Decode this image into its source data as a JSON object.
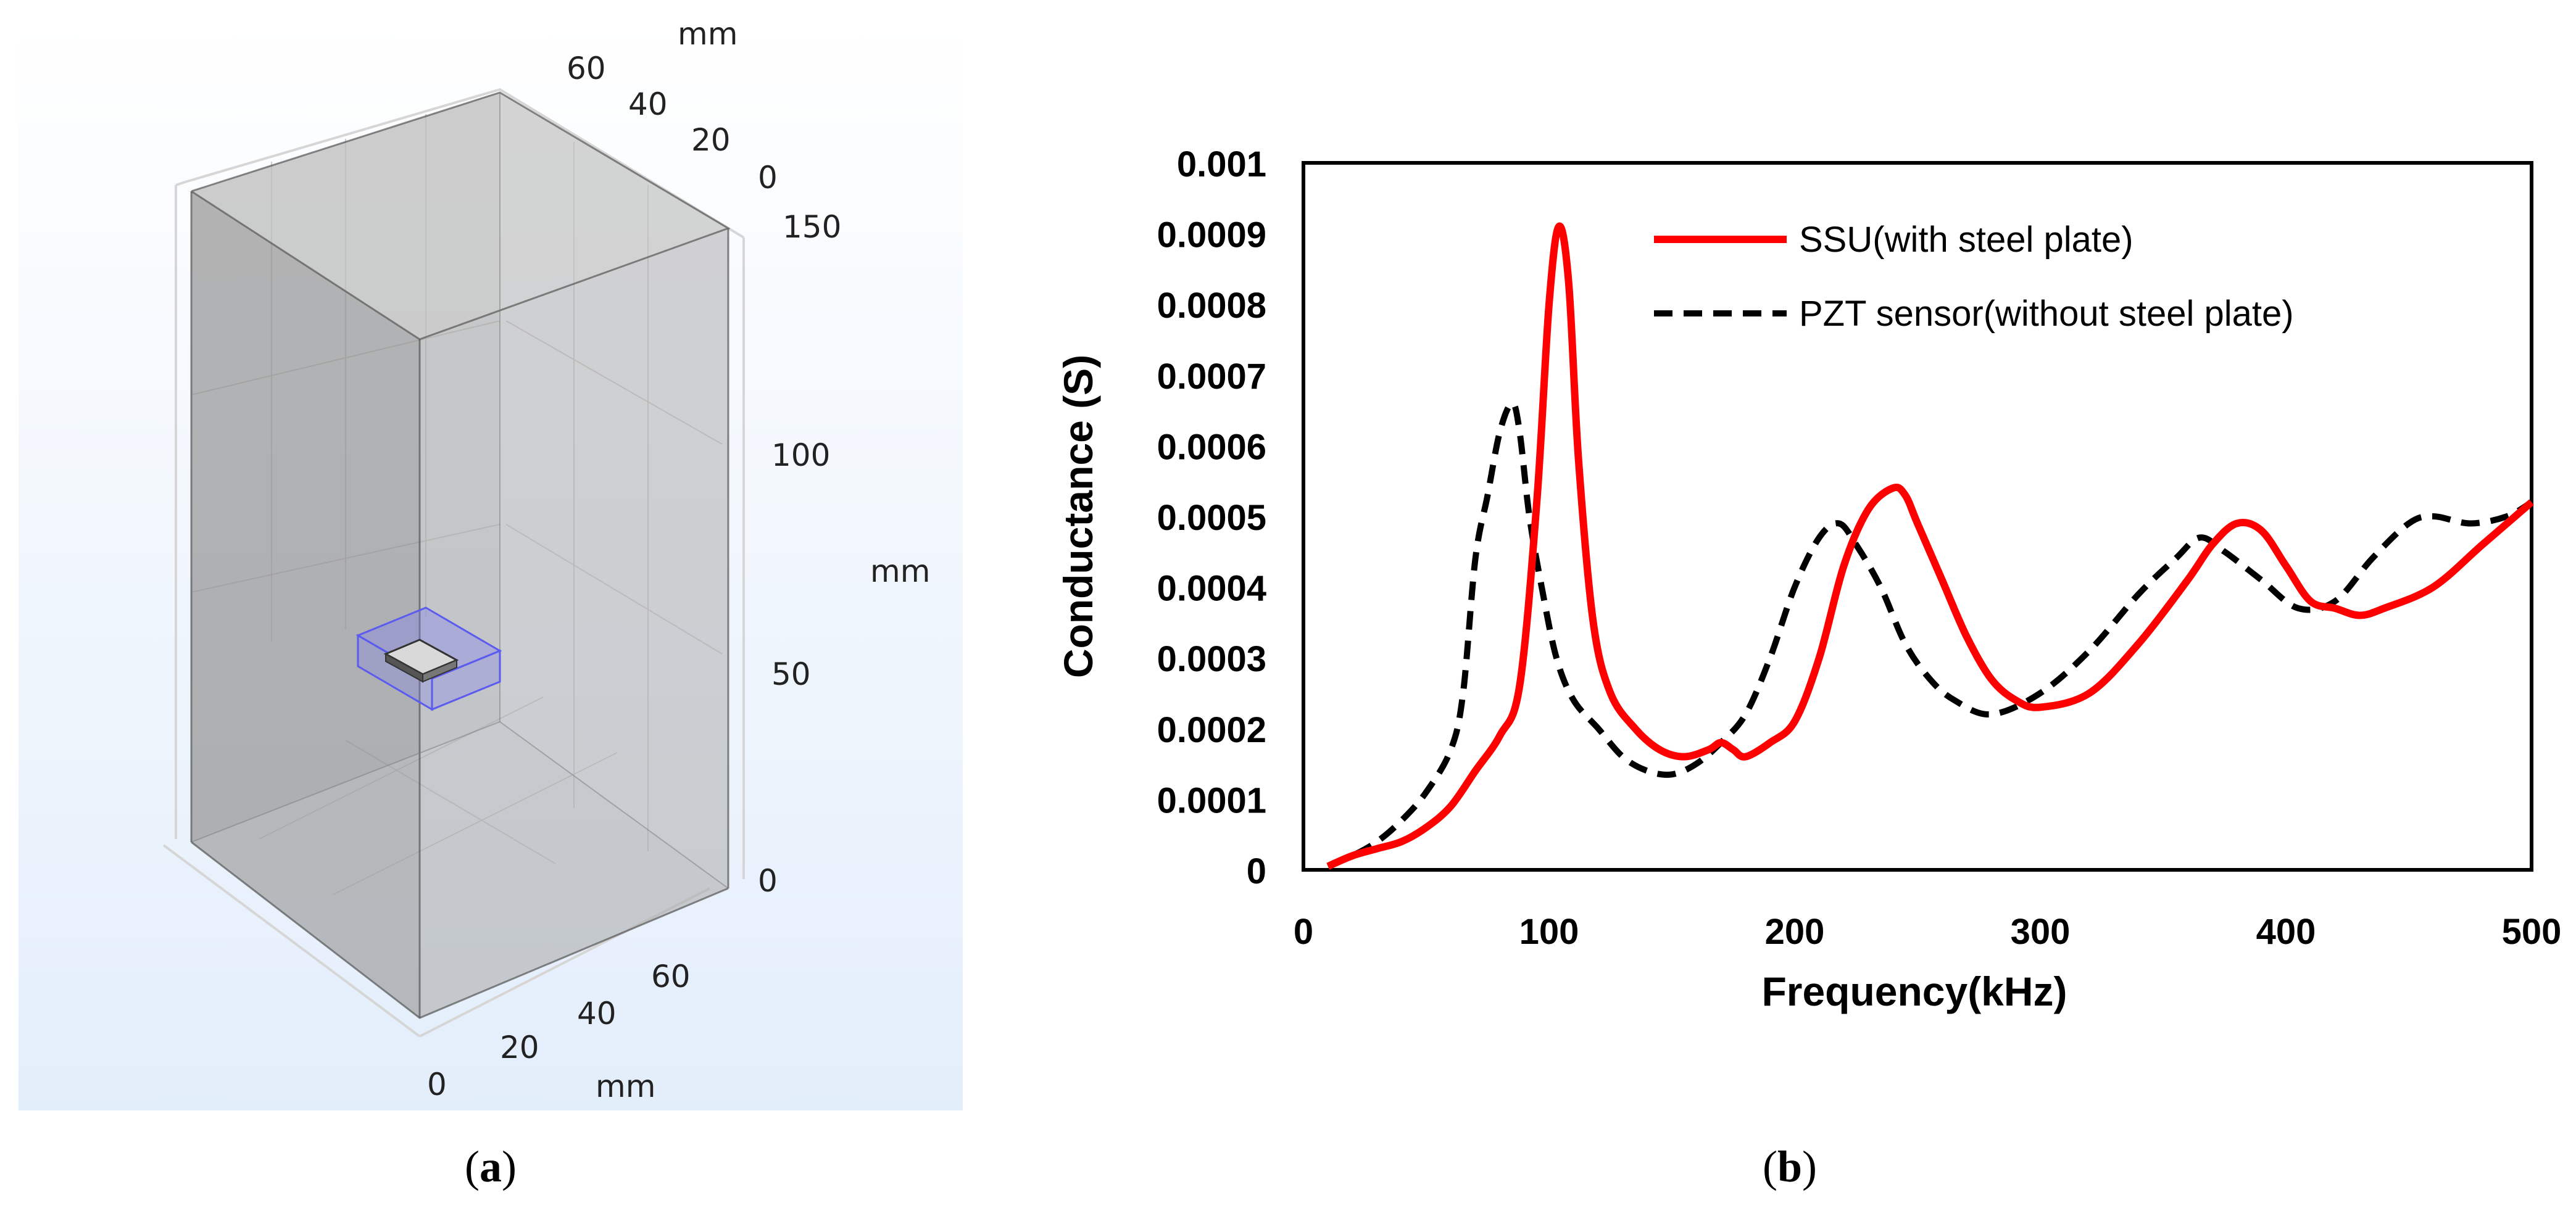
{
  "panel_a": {
    "caption_open": "(",
    "caption_letter": "a",
    "caption_close": ")",
    "unit_label": "mm",
    "top_axis_ticks": [
      "60",
      "40",
      "20",
      "0"
    ],
    "vertical_axis_ticks": [
      "150",
      "100",
      "50",
      "0"
    ],
    "bottom_axis_ticks": [
      "0",
      "20",
      "40",
      "60"
    ],
    "colors": {
      "background_top": "#ffffff",
      "background_bottom": "#e3eefb",
      "box_fill": "#bdbdbd",
      "sensor_outline": "#5b5bef"
    }
  },
  "panel_b": {
    "caption_open": "(",
    "caption_letter": "b",
    "caption_close": ")"
  },
  "chart_data": {
    "type": "line",
    "xlabel": "Frequency(kHz)",
    "ylabel": "Conductance (S)",
    "xlim": [
      0,
      500
    ],
    "ylim": [
      0,
      0.001
    ],
    "x_ticks": [
      "0",
      "100",
      "200",
      "300",
      "400",
      "500"
    ],
    "y_ticks": [
      "0",
      "0.0001",
      "0.0002",
      "0.0003",
      "0.0004",
      "0.0005",
      "0.0006",
      "0.0007",
      "0.0008",
      "0.0009",
      "0.001"
    ],
    "grid": false,
    "legend_position": "top-right",
    "series": [
      {
        "name": "SSU(with steel plate)",
        "color": "#ff0000",
        "style": "solid",
        "x": [
          10,
          20,
          30,
          40,
          50,
          60,
          70,
          80,
          88,
          95,
          100,
          104,
          108,
          112,
          118,
          125,
          135,
          145,
          155,
          165,
          170,
          175,
          180,
          190,
          200,
          210,
          220,
          230,
          240,
          245,
          250,
          260,
          270,
          280,
          290,
          300,
          320,
          340,
          360,
          370,
          380,
          390,
          400,
          410,
          420,
          430,
          440,
          460,
          480,
          500
        ],
        "y": [
          5e-06,
          2e-05,
          3e-05,
          4e-05,
          6e-05,
          9e-05,
          0.00014,
          0.00019,
          0.00026,
          0.00052,
          0.0008,
          0.00091,
          0.00083,
          0.00058,
          0.00035,
          0.00025,
          0.0002,
          0.00017,
          0.00016,
          0.00017,
          0.00018,
          0.00017,
          0.00016,
          0.00018,
          0.00021,
          0.0003,
          0.00043,
          0.00051,
          0.00054,
          0.00053,
          0.00049,
          0.00041,
          0.00033,
          0.00027,
          0.00024,
          0.00023,
          0.00025,
          0.00032,
          0.00041,
          0.00046,
          0.00049,
          0.00048,
          0.00043,
          0.00038,
          0.00037,
          0.00036,
          0.00037,
          0.0004,
          0.00046,
          0.00052
        ]
      },
      {
        "name": "PZT sensor(without steel plate)",
        "color": "#000000",
        "style": "dashed",
        "x": [
          10,
          20,
          30,
          40,
          50,
          60,
          65,
          70,
          75,
          80,
          85,
          88,
          92,
          97,
          103,
          110,
          120,
          130,
          140,
          150,
          160,
          170,
          180,
          190,
          200,
          210,
          218,
          225,
          235,
          245,
          255,
          265,
          280,
          300,
          320,
          340,
          355,
          365,
          375,
          390,
          405,
          420,
          435,
          450,
          460,
          475,
          490,
          500
        ],
        "y": [
          5e-06,
          2e-05,
          4e-05,
          7e-05,
          0.00011,
          0.00017,
          0.00025,
          0.00044,
          0.00053,
          0.00062,
          0.00066,
          0.00062,
          0.0005,
          0.0004,
          0.0003,
          0.00024,
          0.0002,
          0.00016,
          0.00014,
          0.000135,
          0.00015,
          0.00018,
          0.00022,
          0.0003,
          0.0004,
          0.00047,
          0.00049,
          0.00046,
          0.0004,
          0.00032,
          0.00027,
          0.00024,
          0.00022,
          0.00025,
          0.00031,
          0.00039,
          0.00044,
          0.00047,
          0.00045,
          0.00041,
          0.00037,
          0.00038,
          0.00044,
          0.00049,
          0.0005,
          0.00049,
          0.0005,
          0.00052
        ]
      }
    ]
  }
}
